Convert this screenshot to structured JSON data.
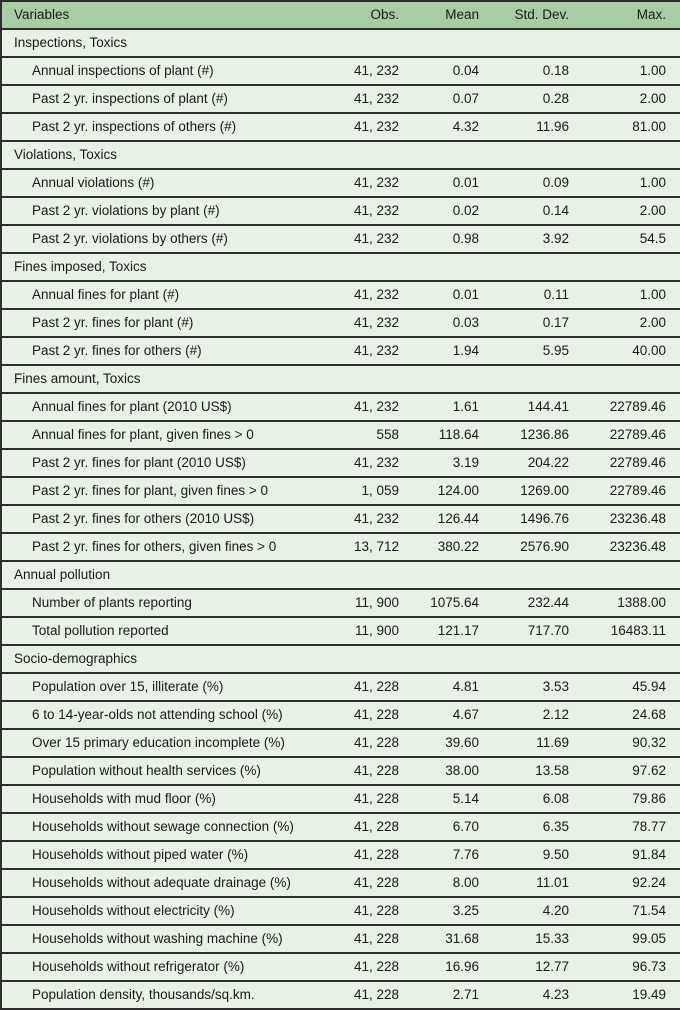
{
  "colors": {
    "header_bg": "#a8cca4",
    "row_bg": "#e8f1e5",
    "border": "#2d2d2d",
    "text": "#1a1a1a"
  },
  "table": {
    "columns": [
      "Variables",
      "Obs.",
      "Mean",
      "Std. Dev.",
      "Max."
    ],
    "sections": [
      {
        "title": "Inspections, Toxics",
        "rows": [
          {
            "label": "Annual inspections of plant (#)",
            "obs": "41, 232",
            "mean": "0.04",
            "std": "0.18",
            "max": "1.00"
          },
          {
            "label": "Past 2 yr. inspections of plant (#)",
            "obs": "41, 232",
            "mean": "0.07",
            "std": "0.28",
            "max": "2.00"
          },
          {
            "label": "Past 2 yr. inspections of others (#)",
            "obs": "41, 232",
            "mean": "4.32",
            "std": "11.96",
            "max": "81.00"
          }
        ]
      },
      {
        "title": "Violations, Toxics",
        "rows": [
          {
            "label": "Annual violations (#)",
            "obs": "41, 232",
            "mean": "0.01",
            "std": "0.09",
            "max": "1.00"
          },
          {
            "label": "Past 2 yr. violations by plant (#)",
            "obs": "41, 232",
            "mean": "0.02",
            "std": "0.14",
            "max": "2.00"
          },
          {
            "label": "Past 2 yr. violations by others (#)",
            "obs": "41, 232",
            "mean": "0.98",
            "std": "3.92",
            "max": "54.5"
          }
        ]
      },
      {
        "title": "Fines imposed, Toxics",
        "rows": [
          {
            "label": "Annual fines for plant (#)",
            "obs": "41, 232",
            "mean": "0.01",
            "std": "0.11",
            "max": "1.00"
          },
          {
            "label": "Past 2 yr. fines for plant (#)",
            "obs": "41, 232",
            "mean": "0.03",
            "std": "0.17",
            "max": "2.00"
          },
          {
            "label": "Past 2 yr. fines for others (#)",
            "obs": "41, 232",
            "mean": "1.94",
            "std": "5.95",
            "max": "40.00"
          }
        ]
      },
      {
        "title": "Fines amount, Toxics",
        "rows": [
          {
            "label": "Annual fines for plant (2010 US$)",
            "obs": "41, 232",
            "mean": "1.61",
            "std": "144.41",
            "max": "22789.46"
          },
          {
            "label": "Annual fines for plant, given fines > 0",
            "obs": "558",
            "mean": "118.64",
            "std": "1236.86",
            "max": "22789.46"
          },
          {
            "label": "Past 2 yr. fines for plant (2010 US$)",
            "obs": "41, 232",
            "mean": "3.19",
            "std": "204.22",
            "max": "22789.46"
          },
          {
            "label": "Past 2 yr. fines for plant, given fines > 0",
            "obs": "1, 059",
            "mean": "124.00",
            "std": "1269.00",
            "max": "22789.46"
          },
          {
            "label": "Past 2 yr. fines for others (2010 US$)",
            "obs": "41, 232",
            "mean": "126.44",
            "std": "1496.76",
            "max": "23236.48"
          },
          {
            "label": "Past 2 yr. fines for others, given fines > 0",
            "obs": "13, 712",
            "mean": "380.22",
            "std": "2576.90",
            "max": "23236.48"
          }
        ]
      },
      {
        "title": "Annual pollution",
        "rows": [
          {
            "label": "Number of plants reporting",
            "obs": "11, 900",
            "mean": "1075.64",
            "std": "232.44",
            "max": "1388.00"
          },
          {
            "label": "Total pollution reported",
            "obs": "11, 900",
            "mean": "121.17",
            "std": "717.70",
            "max": "16483.11"
          }
        ]
      },
      {
        "title": "Socio-demographics",
        "rows": [
          {
            "label": "Population over 15, illiterate (%)",
            "obs": "41, 228",
            "mean": "4.81",
            "std": "3.53",
            "max": "45.94"
          },
          {
            "label": "6 to 14-year-olds not attending school (%)",
            "obs": "41, 228",
            "mean": "4.67",
            "std": "2.12",
            "max": "24.68"
          },
          {
            "label": "Over 15 primary education incomplete (%)",
            "obs": "41, 228",
            "mean": "39.60",
            "std": "11.69",
            "max": "90.32"
          },
          {
            "label": "Population without health services (%)",
            "obs": "41, 228",
            "mean": "38.00",
            "std": "13.58",
            "max": "97.62"
          },
          {
            "label": "Households with mud floor (%)",
            "obs": "41, 228",
            "mean": "5.14",
            "std": "6.08",
            "max": "79.86"
          },
          {
            "label": "Households without sewage connection (%)",
            "obs": "41, 228",
            "mean": "6.70",
            "std": "6.35",
            "max": "78.77"
          },
          {
            "label": "Households without piped water (%)",
            "obs": "41, 228",
            "mean": "7.76",
            "std": "9.50",
            "max": "91.84"
          },
          {
            "label": "Households without adequate drainage (%)",
            "obs": "41, 228",
            "mean": "8.00",
            "std": "11.01",
            "max": "92.24"
          },
          {
            "label": "Households without electricity (%)",
            "obs": "41, 228",
            "mean": "3.25",
            "std": "4.20",
            "max": "71.54"
          },
          {
            "label": "Households without washing machine (%)",
            "obs": "41, 228",
            "mean": "31.68",
            "std": "15.33",
            "max": "99.05"
          },
          {
            "label": "Households without refrigerator (%)",
            "obs": "41, 228",
            "mean": "16.96",
            "std": "12.77",
            "max": "96.73"
          },
          {
            "label": "Population density, thousands/sq.km.",
            "obs": "41, 228",
            "mean": "2.71",
            "std": "4.23",
            "max": "19.49"
          }
        ]
      }
    ]
  }
}
